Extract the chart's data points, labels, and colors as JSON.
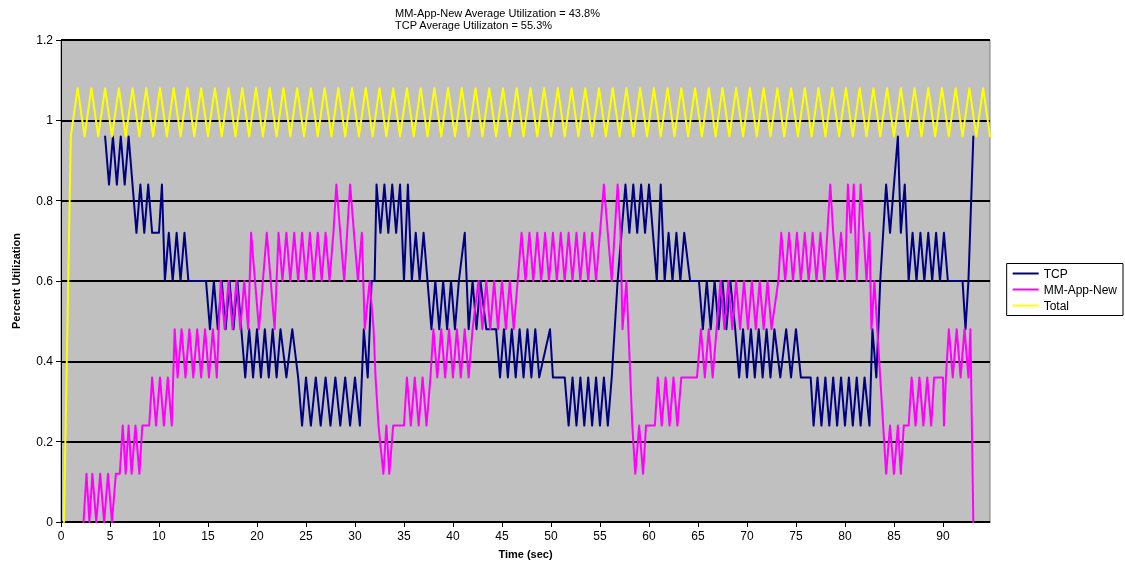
{
  "chart_data": {
    "type": "line",
    "title": "MM-App-New Average Utilization = 43.8%",
    "subtitle": "TCP Average Utilizaton = 55.3%",
    "xlabel": "Time (sec)",
    "ylabel": "Percent Utilization",
    "xlim": [
      0,
      94.8
    ],
    "xticks": [
      0,
      5,
      10,
      15,
      20,
      25,
      30,
      35,
      40,
      45,
      50,
      55,
      60,
      65,
      70,
      75,
      80,
      85,
      90
    ],
    "ylim": [
      0,
      1.2
    ],
    "yticks": [
      0,
      0.2,
      0.4,
      0.6,
      0.8,
      1,
      1.2
    ],
    "grid": "y",
    "legend": "right",
    "marker": "none",
    "line_style": "solid",
    "series": [
      {
        "name": "TCP",
        "color": "#000080",
        "x": [
          4.5,
          4.9,
          5.3,
          5.7,
          6.1,
          6.5,
          6.9,
          7.3,
          7.7,
          8.1,
          8.5,
          8.9,
          9.3,
          10.0,
          10.3,
          10.6,
          11.0,
          11.4,
          11.8,
          12.2,
          12.6,
          13.0,
          14.8,
          15.2,
          15.6,
          16.0,
          16.4,
          16.8,
          17.2,
          17.6,
          18.0,
          18.4,
          18.8,
          19.2,
          19.6,
          20.0,
          20.4,
          20.8,
          21.2,
          21.6,
          22.0,
          22.4,
          23.0,
          23.6,
          24.2,
          24.6,
          25.0,
          25.5,
          26.0,
          26.5,
          27.0,
          27.5,
          28.0,
          28.5,
          29.0,
          29.5,
          30.0,
          30.5,
          30.9,
          31.3,
          31.7,
          32.0,
          32.2,
          32.6,
          33.0,
          33.4,
          33.8,
          34.2,
          34.6,
          35.0,
          35.4,
          35.8,
          36.2,
          36.6,
          37.0,
          37.4,
          37.8,
          38.2,
          38.6,
          39.0,
          39.4,
          39.8,
          40.2,
          40.6,
          41.2,
          41.6,
          42.0,
          42.4,
          42.8,
          43.4,
          44.4,
          44.8,
          45.2,
          45.6,
          46.0,
          46.4,
          46.8,
          47.2,
          47.6,
          48.0,
          48.4,
          48.8,
          49.9,
          50.2,
          51.4,
          51.8,
          52.2,
          52.6,
          53.0,
          53.4,
          53.8,
          54.2,
          54.6,
          55.0,
          55.4,
          55.8,
          56.2,
          56.5,
          56.8,
          57.2,
          57.6,
          58.0,
          58.4,
          58.8,
          59.2,
          59.6,
          60.0,
          60.4,
          60.8,
          61.2,
          61.6,
          62.0,
          62.4,
          62.8,
          63.2,
          63.6,
          64.2,
          65.1,
          65.5,
          65.9,
          66.3,
          66.7,
          67.1,
          67.5,
          67.9,
          68.3,
          68.8,
          69.2,
          69.6,
          70.0,
          70.4,
          70.8,
          71.2,
          71.6,
          72.0,
          72.4,
          72.8,
          73.4,
          74.0,
          74.5,
          75.0,
          75.5,
          76.5,
          76.8,
          77.2,
          77.6,
          78.0,
          78.4,
          78.8,
          79.2,
          79.6,
          80.0,
          80.4,
          80.8,
          81.2,
          81.6,
          82.0,
          82.5,
          82.8,
          83.2,
          83.6,
          83.9,
          84.2,
          84.6,
          85.0,
          85.4,
          85.7,
          86.1,
          86.5,
          86.9,
          87.3,
          87.7,
          88.1,
          88.5,
          88.9,
          89.3,
          89.7,
          90.1,
          90.5,
          91.0,
          92.0,
          92.3,
          92.6,
          93.1
        ],
        "values": [
          0.96,
          0.84,
          0.96,
          0.84,
          0.96,
          0.84,
          0.96,
          0.84,
          0.72,
          0.84,
          0.72,
          0.84,
          0.72,
          0.72,
          0.84,
          0.6,
          0.72,
          0.6,
          0.72,
          0.6,
          0.72,
          0.6,
          0.6,
          0.48,
          0.6,
          0.48,
          0.6,
          0.48,
          0.6,
          0.48,
          0.6,
          0.48,
          0.36,
          0.48,
          0.36,
          0.48,
          0.36,
          0.48,
          0.36,
          0.48,
          0.36,
          0.48,
          0.36,
          0.48,
          0.36,
          0.24,
          0.36,
          0.24,
          0.36,
          0.24,
          0.36,
          0.24,
          0.36,
          0.24,
          0.36,
          0.24,
          0.36,
          0.24,
          0.48,
          0.36,
          0.6,
          0.6,
          0.84,
          0.72,
          0.84,
          0.72,
          0.84,
          0.72,
          0.84,
          0.6,
          0.84,
          0.6,
          0.72,
          0.6,
          0.72,
          0.6,
          0.48,
          0.6,
          0.48,
          0.6,
          0.48,
          0.6,
          0.48,
          0.6,
          0.72,
          0.48,
          0.6,
          0.48,
          0.6,
          0.48,
          0.48,
          0.36,
          0.48,
          0.36,
          0.48,
          0.36,
          0.48,
          0.36,
          0.48,
          0.36,
          0.48,
          0.36,
          0.48,
          0.36,
          0.36,
          0.24,
          0.36,
          0.24,
          0.36,
          0.24,
          0.36,
          0.24,
          0.36,
          0.24,
          0.36,
          0.24,
          0.36,
          0.48,
          0.6,
          0.72,
          0.84,
          0.72,
          0.84,
          0.72,
          0.84,
          0.72,
          0.84,
          0.72,
          0.6,
          0.84,
          0.6,
          0.72,
          0.6,
          0.72,
          0.6,
          0.72,
          0.6,
          0.6,
          0.48,
          0.6,
          0.48,
          0.6,
          0.48,
          0.6,
          0.48,
          0.6,
          0.48,
          0.36,
          0.48,
          0.36,
          0.48,
          0.36,
          0.48,
          0.36,
          0.48,
          0.36,
          0.48,
          0.36,
          0.48,
          0.36,
          0.48,
          0.36,
          0.36,
          0.24,
          0.36,
          0.24,
          0.36,
          0.24,
          0.36,
          0.24,
          0.36,
          0.24,
          0.36,
          0.24,
          0.36,
          0.24,
          0.36,
          0.24,
          0.48,
          0.36,
          0.6,
          0.72,
          0.84,
          0.72,
          0.84,
          0.96,
          0.72,
          0.84,
          0.6,
          0.72,
          0.6,
          0.72,
          0.6,
          0.72,
          0.6,
          0.72,
          0.6,
          0.72,
          0.6,
          0.6,
          0.6,
          0.48,
          0.6,
          0.96
        ]
      },
      {
        "name": "MM-App-New",
        "color": "#ff00ff",
        "x": [
          2.3,
          2.6,
          2.9,
          3.2,
          3.6,
          4.0,
          4.4,
          4.8,
          5.2,
          5.6,
          6.0,
          6.3,
          6.6,
          6.9,
          7.2,
          7.6,
          8.0,
          8.3,
          9.0,
          9.3,
          9.7,
          10.1,
          10.5,
          10.9,
          11.3,
          11.6,
          11.9,
          12.3,
          12.7,
          13.1,
          13.5,
          13.9,
          14.3,
          14.7,
          15.1,
          15.5,
          15.9,
          16.3,
          16.7,
          17.1,
          17.5,
          17.9,
          18.3,
          18.7,
          19.1,
          19.4,
          19.8,
          20.2,
          20.6,
          21.0,
          21.4,
          21.8,
          22.2,
          22.6,
          23.0,
          23.4,
          23.8,
          24.2,
          24.6,
          25.0,
          25.4,
          25.8,
          26.2,
          26.6,
          27.0,
          27.4,
          27.8,
          28.1,
          28.5,
          28.9,
          29.2,
          29.5,
          29.9,
          30.3,
          30.7,
          31.0,
          31.5,
          31.9,
          32.1,
          32.4,
          32.9,
          33.2,
          33.5,
          33.9,
          35.0,
          35.3,
          35.7,
          36.1,
          36.5,
          36.9,
          37.3,
          37.7,
          38.0,
          38.4,
          38.8,
          39.2,
          39.6,
          40.0,
          40.4,
          40.8,
          41.2,
          41.6,
          42.0,
          42.6,
          43.0,
          43.4,
          43.8,
          44.2,
          44.6,
          45.0,
          45.4,
          45.8,
          46.2,
          46.6,
          47.0,
          47.4,
          47.8,
          48.2,
          48.6,
          49.0,
          49.4,
          49.8,
          50.2,
          50.6,
          51.0,
          51.4,
          51.8,
          52.2,
          52.6,
          53.0,
          53.4,
          53.8,
          54.2,
          54.6,
          55.0,
          55.4,
          55.8,
          56.2,
          56.5,
          56.8,
          57.1,
          57.3,
          57.7,
          57.9,
          58.1,
          58.3,
          58.6,
          59.0,
          59.4,
          59.7,
          60.6,
          60.9,
          61.3,
          61.7,
          62.1,
          62.5,
          62.9,
          63.3,
          64.9,
          65.3,
          65.7,
          66.1,
          66.5,
          66.9,
          67.3,
          67.7,
          68.1,
          68.5,
          68.9,
          69.3,
          69.7,
          70.1,
          70.5,
          70.9,
          71.3,
          71.7,
          72.1,
          72.5,
          73.2,
          73.5,
          73.9,
          74.3,
          74.7,
          75.1,
          75.5,
          75.9,
          76.3,
          76.7,
          77.1,
          77.5,
          77.9,
          78.2,
          78.5,
          78.8,
          79.2,
          79.6,
          80.0,
          80.3,
          80.6,
          80.9,
          81.2,
          81.6,
          81.9,
          82.2,
          82.5,
          82.7,
          83.0,
          83.3,
          83.6,
          83.9,
          84.2,
          84.6,
          85.0,
          85.4,
          85.7,
          86.0,
          86.5,
          86.8,
          87.2,
          87.6,
          88.0,
          88.4,
          88.8,
          89.1,
          90.0,
          90.1,
          90.3,
          90.6,
          91.0,
          91.4,
          91.8,
          92.2,
          92.6,
          92.8,
          93.1
        ],
        "values": [
          0,
          0.12,
          0,
          0.12,
          0,
          0.12,
          0,
          0.12,
          0,
          0.12,
          0.12,
          0.24,
          0.12,
          0.24,
          0.12,
          0.24,
          0.12,
          0.24,
          0.24,
          0.36,
          0.24,
          0.36,
          0.24,
          0.36,
          0.24,
          0.48,
          0.36,
          0.48,
          0.36,
          0.48,
          0.36,
          0.48,
          0.36,
          0.48,
          0.36,
          0.48,
          0.36,
          0.6,
          0.48,
          0.6,
          0.48,
          0.6,
          0.48,
          0.6,
          0.48,
          0.72,
          0.6,
          0.48,
          0.6,
          0.72,
          0.6,
          0.48,
          0.72,
          0.6,
          0.72,
          0.6,
          0.72,
          0.6,
          0.72,
          0.6,
          0.72,
          0.6,
          0.72,
          0.6,
          0.72,
          0.6,
          0.72,
          0.84,
          0.72,
          0.6,
          0.72,
          0.84,
          0.72,
          0.6,
          0.72,
          0.48,
          0.6,
          0.48,
          0.36,
          0.24,
          0.12,
          0.24,
          0.12,
          0.24,
          0.24,
          0.36,
          0.24,
          0.36,
          0.24,
          0.36,
          0.24,
          0.36,
          0.48,
          0.36,
          0.48,
          0.36,
          0.48,
          0.36,
          0.48,
          0.36,
          0.48,
          0.36,
          0.48,
          0.6,
          0.48,
          0.6,
          0.48,
          0.6,
          0.48,
          0.6,
          0.48,
          0.6,
          0.48,
          0.6,
          0.72,
          0.6,
          0.72,
          0.6,
          0.72,
          0.6,
          0.72,
          0.6,
          0.72,
          0.6,
          0.72,
          0.6,
          0.72,
          0.6,
          0.72,
          0.6,
          0.72,
          0.6,
          0.72,
          0.6,
          0.72,
          0.84,
          0.72,
          0.6,
          0.72,
          0.84,
          0.72,
          0.48,
          0.6,
          0.48,
          0.36,
          0.24,
          0.12,
          0.24,
          0.12,
          0.24,
          0.24,
          0.36,
          0.24,
          0.36,
          0.24,
          0.36,
          0.24,
          0.36,
          0.36,
          0.48,
          0.36,
          0.48,
          0.36,
          0.48,
          0.6,
          0.48,
          0.6,
          0.48,
          0.6,
          0.48,
          0.6,
          0.48,
          0.6,
          0.48,
          0.6,
          0.48,
          0.6,
          0.48,
          0.6,
          0.72,
          0.6,
          0.72,
          0.6,
          0.72,
          0.6,
          0.72,
          0.6,
          0.72,
          0.6,
          0.72,
          0.6,
          0.72,
          0.84,
          0.72,
          0.6,
          0.72,
          0.6,
          0.84,
          0.72,
          0.84,
          0.6,
          0.84,
          0.72,
          0.6,
          0.72,
          0.48,
          0.6,
          0.48,
          0.36,
          0.24,
          0.12,
          0.24,
          0.12,
          0.24,
          0.12,
          0.24,
          0.24,
          0.36,
          0.24,
          0.36,
          0.24,
          0.36,
          0.24,
          0.36,
          0.36,
          0.24,
          0.36,
          0.48,
          0.36,
          0.48,
          0.36,
          0.48,
          0.36,
          0.48,
          0
        ]
      },
      {
        "name": "Total",
        "color": "#ffff00",
        "x": [
          0.3,
          1.0,
          1.7,
          2.4,
          3.1,
          3.8,
          4.5,
          5.2,
          5.9,
          6.6,
          7.3,
          8.0,
          8.7,
          9.4,
          10.1,
          10.8,
          11.5,
          12.2,
          12.9,
          13.6,
          14.3,
          15.0,
          15.7,
          16.4,
          17.1,
          17.8,
          18.5,
          19.2,
          19.9,
          20.6,
          21.3,
          22.0,
          22.7,
          23.4,
          24.1,
          24.8,
          25.5,
          26.2,
          26.9,
          27.6,
          28.3,
          29.0,
          29.7,
          30.4,
          31.1,
          31.8,
          32.5,
          33.2,
          33.9,
          34.6,
          35.3,
          36.0,
          36.7,
          37.4,
          38.1,
          38.8,
          39.5,
          40.2,
          40.9,
          41.6,
          42.3,
          43.0,
          43.7,
          44.4,
          45.1,
          45.8,
          46.5,
          47.2,
          47.9,
          48.6,
          49.3,
          50.0,
          50.7,
          51.4,
          52.1,
          52.8,
          53.5,
          54.2,
          54.9,
          55.6,
          56.3,
          57.0,
          57.7,
          58.4,
          59.1,
          59.8,
          60.5,
          61.2,
          61.9,
          62.6,
          63.3,
          64.0,
          64.7,
          65.4,
          66.1,
          66.8,
          67.5,
          68.2,
          68.9,
          69.6,
          70.3,
          71.0,
          71.7,
          72.4,
          73.1,
          73.8,
          74.5,
          75.2,
          75.9,
          76.6,
          77.3,
          78.0,
          78.7,
          79.4,
          80.1,
          80.8,
          81.5,
          82.2,
          82.9,
          83.6,
          84.3,
          85.0,
          85.7,
          86.4,
          87.1,
          87.8,
          88.5,
          89.2,
          89.9,
          90.6,
          91.3,
          92.0,
          92.7,
          93.4,
          94.1,
          94.8
        ],
        "values": [
          0,
          0.96,
          1.08,
          0.96,
          1.08,
          0.96,
          1.08,
          0.96,
          1.08,
          0.96,
          1.08,
          0.96,
          1.08,
          0.96,
          1.08,
          0.96,
          1.08,
          0.96,
          1.08,
          0.96,
          1.08,
          0.96,
          1.08,
          0.96,
          1.08,
          0.96,
          1.08,
          0.96,
          1.08,
          0.96,
          1.08,
          0.96,
          1.08,
          0.96,
          1.08,
          0.96,
          1.08,
          0.96,
          1.08,
          0.96,
          1.08,
          0.96,
          1.08,
          0.96,
          1.08,
          0.96,
          1.08,
          0.96,
          1.08,
          0.96,
          1.08,
          0.96,
          1.08,
          0.96,
          1.08,
          0.96,
          1.08,
          0.96,
          1.08,
          0.96,
          1.08,
          0.96,
          1.08,
          0.96,
          1.08,
          0.96,
          1.08,
          0.96,
          1.08,
          0.96,
          1.08,
          0.96,
          1.08,
          0.96,
          1.08,
          0.96,
          1.08,
          0.96,
          1.08,
          0.96,
          1.08,
          0.96,
          1.08,
          0.96,
          1.08,
          0.96,
          1.08,
          0.96,
          1.08,
          0.96,
          1.08,
          0.96,
          1.08,
          0.96,
          1.08,
          0.96,
          1.08,
          0.96,
          1.08,
          0.96,
          1.08,
          0.96,
          1.08,
          0.96,
          1.08,
          0.96,
          1.08,
          0.96,
          1.08,
          0.96,
          1.08,
          0.96,
          1.08,
          0.96,
          1.08,
          0.96,
          1.08,
          0.96,
          1.08,
          0.96,
          1.08,
          0.96,
          1.08,
          0.96,
          1.08,
          0.96,
          1.08,
          0.96,
          1.08,
          0.96,
          1.08,
          0.96,
          1.08,
          0.96,
          1.08,
          0.96
        ]
      }
    ]
  }
}
